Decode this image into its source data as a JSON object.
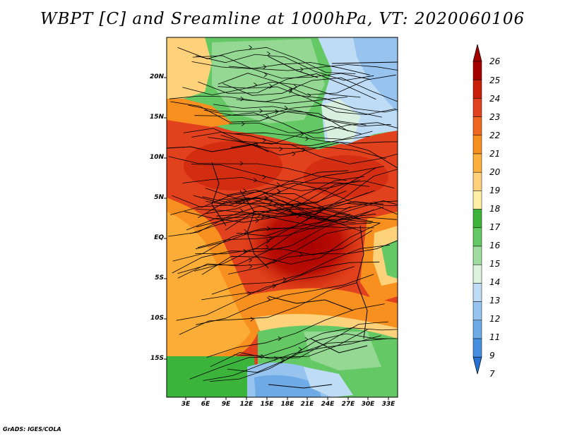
{
  "title": "WBPT [C] and Sreamline at 1000hPa, VT: 2020060106",
  "credit": "GrADS: IGES/COLA",
  "map": {
    "lon_labels": [
      "3E",
      "6E",
      "9E",
      "12E",
      "15E",
      "18E",
      "21E",
      "24E",
      "27E",
      "30E",
      "33E"
    ],
    "lat_labels": [
      "20N",
      "15N",
      "10N",
      "5N",
      "EQ",
      "5S",
      "10S",
      "15S"
    ]
  },
  "colorbar": {
    "labels": [
      "26",
      "25",
      "24",
      "23",
      "22",
      "21",
      "20",
      "19",
      "18",
      "17",
      "16",
      "15",
      "14",
      "13",
      "12",
      "11",
      "9",
      "7"
    ],
    "colors": [
      "#a50000",
      "#c81e0a",
      "#e1411c",
      "#ef6820",
      "#f7901e",
      "#fbb03b",
      "#fdd27a",
      "#fff0a8",
      "#3cb43c",
      "#64c864",
      "#a0dca0",
      "#dcf2dc",
      "#bedcf5",
      "#96c4ee",
      "#6eaae6",
      "#468ede",
      "#2870d2"
    ]
  },
  "colors": {
    "frame": "#000000",
    "background": "#ffffff"
  }
}
